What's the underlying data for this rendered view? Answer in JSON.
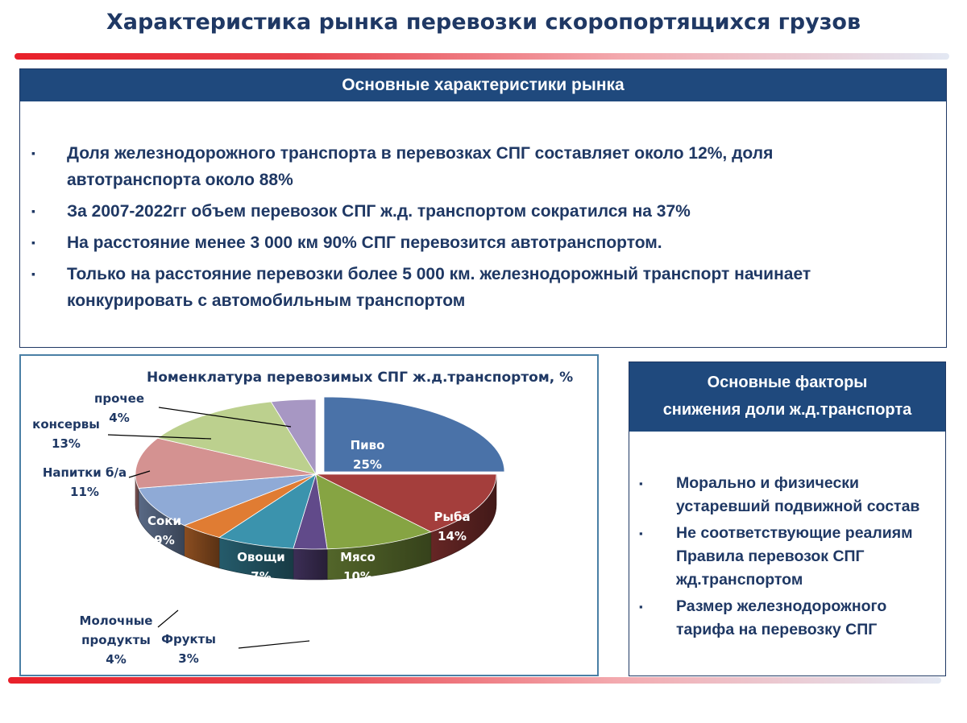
{
  "page": {
    "title": "Характеристика рынка перевозки скоропортящихся грузов"
  },
  "market_box": {
    "header": "Основные характеристики рынка",
    "bullet_symbol": "▪",
    "items": [
      {
        "lines": [
          "Доля железнодорожного транспорта в перевозках СПГ составляет около 12%, доля",
          "автотранспорта около 88%"
        ]
      },
      {
        "lines": [
          "За 2007-2022гг  объем перевозок СПГ ж.д. транспортом сократился на 37%"
        ]
      },
      {
        "lines": [
          "На расстояние менее 3 000 км 90% СПГ перевозится автотранспортом."
        ]
      },
      {
        "lines": [
          "Только на расстояние перевозки более  5 000 км. железнодорожный транспорт начинает",
          "конкурировать с автомобильным транспортом"
        ]
      }
    ]
  },
  "factors_box": {
    "header_lines": [
      "Основные факторы",
      "снижения доли ж.д.транспорта"
    ],
    "bullet_symbol": "▪",
    "items": [
      {
        "lines": [
          "Морально и физически",
          "устаревший подвижной состав"
        ]
      },
      {
        "lines": [
          "Не соответствующие реалиям",
          "Правила перевозок СПГ",
          "жд.транспортом"
        ]
      },
      {
        "lines": [
          "Размер железнодорожного",
          "тарифа на перевозку СПГ"
        ]
      }
    ]
  },
  "chart_data": {
    "type": "pie",
    "title": "Номенклатура перевозимых СПГ ж.д.транспортом, %",
    "style": "3d-exploded",
    "slices": [
      {
        "name": "Пиво",
        "value": 25,
        "label": "25%",
        "color": "#4a72a8",
        "label_position": "inside"
      },
      {
        "name": "Рыба",
        "value": 14,
        "label": "14%",
        "color": "#a43e3c",
        "label_position": "inside"
      },
      {
        "name": "Мясо",
        "value": 10,
        "label": "10%",
        "color": "#86a443",
        "label_position": "inside"
      },
      {
        "name": "Фрукты",
        "value": 3,
        "label": "3%",
        "color": "#614a8a",
        "label_position": "outside"
      },
      {
        "name": "Овощи",
        "value": 7,
        "label": "7%",
        "color": "#3b93ad",
        "label_position": "inside"
      },
      {
        "name": "Молочные продукты",
        "name_lines": [
          "Молочные",
          "продукты"
        ],
        "value": 4,
        "label": "4%",
        "color": "#e07c33",
        "label_position": "outside"
      },
      {
        "name": "Соки",
        "value": 9,
        "label": "9%",
        "color": "#8faad6",
        "label_position": "inside"
      },
      {
        "name": "Напитки б/а",
        "value": 11,
        "label": "11%",
        "color": "#d49291",
        "label_position": "outside"
      },
      {
        "name": "консервы",
        "value": 13,
        "label": "13%",
        "color": "#bcd08e",
        "label_position": "outside"
      },
      {
        "name": "прочее",
        "value": 4,
        "label": "4%",
        "color": "#a797c3",
        "label_position": "outside"
      }
    ]
  }
}
